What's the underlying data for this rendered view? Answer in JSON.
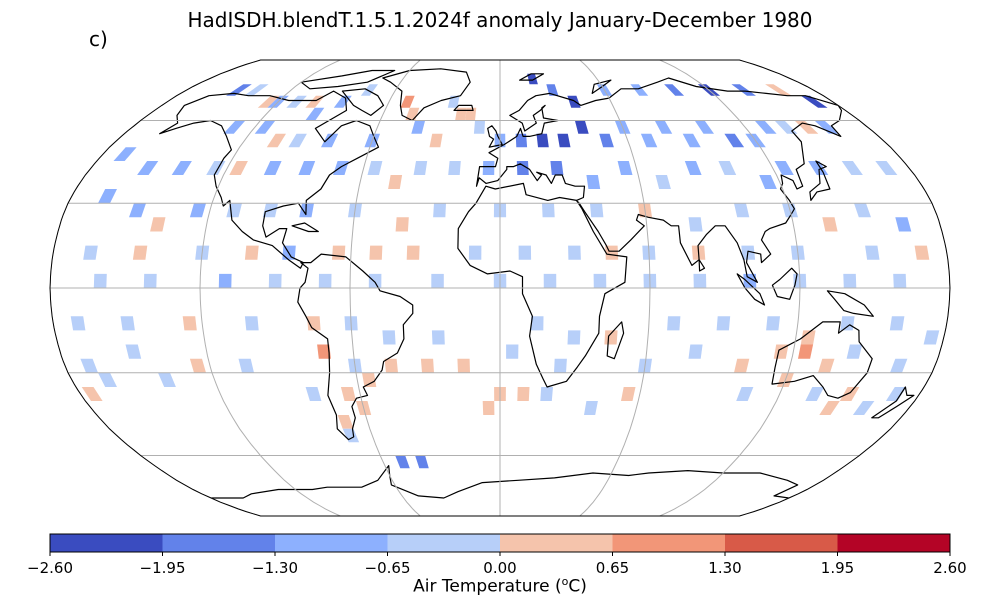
{
  "title": "HadISDH.blendT.1.5.1.2024f anomaly January-December 1980",
  "panel_label": "c)",
  "colorbar": {
    "label": "Air Temperature (",
    "label_sup": "o",
    "label_unit": "C)",
    "ticks": [
      "−2.60",
      "−1.95",
      "−1.30",
      "−0.65",
      "0.00",
      "0.65",
      "1.30",
      "1.95",
      "2.60"
    ],
    "bins": [
      {
        "min": -2.6,
        "max": -1.95,
        "color": "#3a4cc0"
      },
      {
        "min": -1.95,
        "max": -1.3,
        "color": "#6282ea"
      },
      {
        "min": -1.3,
        "max": -0.65,
        "color": "#8db0fe"
      },
      {
        "min": -0.65,
        "max": 0.0,
        "color": "#b7cff9"
      },
      {
        "min": 0.0,
        "max": 0.65,
        "color": "#f5c4ac"
      },
      {
        "min": 0.65,
        "max": 1.3,
        "color": "#f29678"
      },
      {
        "min": 1.3,
        "max": 1.95,
        "color": "#d85a48"
      },
      {
        "min": 1.95,
        "max": 2.6,
        "color": "#b40426"
      }
    ]
  },
  "map": {
    "projection": "Robinson",
    "grid_lines": true,
    "coastlines": true,
    "anomaly_cells": [
      {
        "lon": -150,
        "lat": 72.5,
        "value": -1.6
      },
      {
        "lon": -140,
        "lat": 72.5,
        "value": -0.3
      },
      {
        "lon": -125,
        "lat": 67.5,
        "value": 0.3
      },
      {
        "lon": -120,
        "lat": 67.5,
        "value": -0.8
      },
      {
        "lon": -110,
        "lat": 67.5,
        "value": -0.4
      },
      {
        "lon": -100,
        "lat": 67.5,
        "value": 0.3
      },
      {
        "lon": -95,
        "lat": 62.5,
        "value": -0.9
      },
      {
        "lon": -85,
        "lat": 67.5,
        "value": -1.0
      },
      {
        "lon": -75,
        "lat": 72.5,
        "value": -0.5
      },
      {
        "lon": -50,
        "lat": 67.5,
        "value": 0.8
      },
      {
        "lon": -45,
        "lat": 62.5,
        "value": 0.6
      },
      {
        "lon": -25,
        "lat": 67.5,
        "value": -0.4
      },
      {
        "lon": -20,
        "lat": 62.5,
        "value": 0.3
      },
      {
        "lon": -15,
        "lat": 62.5,
        "value": 0.4
      },
      {
        "lon": 20,
        "lat": 77.5,
        "value": -2.2
      },
      {
        "lon": 30,
        "lat": 72.5,
        "value": -1.8
      },
      {
        "lon": 40,
        "lat": 67.5,
        "value": -2.0
      },
      {
        "lon": 60,
        "lat": 72.5,
        "value": -1.0
      },
      {
        "lon": 80,
        "lat": 72.5,
        "value": -1.2
      },
      {
        "lon": 100,
        "lat": 72.5,
        "value": -1.5
      },
      {
        "lon": 120,
        "lat": 72.5,
        "value": -2.2
      },
      {
        "lon": 140,
        "lat": 72.5,
        "value": -1.4
      },
      {
        "lon": 160,
        "lat": 72.5,
        "value": 0.3
      },
      {
        "lon": 170,
        "lat": 67.5,
        "value": -2.3
      },
      {
        "lon": -130,
        "lat": 57.5,
        "value": -0.9
      },
      {
        "lon": -115,
        "lat": 57.5,
        "value": -1.1
      },
      {
        "lon": -105,
        "lat": 52.5,
        "value": 0.4
      },
      {
        "lon": -95,
        "lat": 52.5,
        "value": -0.5
      },
      {
        "lon": -80,
        "lat": 52.5,
        "value": -1.0
      },
      {
        "lon": -60,
        "lat": 52.5,
        "value": -1.0
      },
      {
        "lon": -40,
        "lat": 57.5,
        "value": -0.7
      },
      {
        "lon": -30,
        "lat": 52.5,
        "value": 0.2
      },
      {
        "lon": -10,
        "lat": 57.5,
        "value": -0.4
      },
      {
        "lon": 0,
        "lat": 52.5,
        "value": -1.0
      },
      {
        "lon": 10,
        "lat": 52.5,
        "value": -1.9
      },
      {
        "lon": 20,
        "lat": 52.5,
        "value": -2.2
      },
      {
        "lon": 30,
        "lat": 52.5,
        "value": -2.4
      },
      {
        "lon": 40,
        "lat": 57.5,
        "value": -2.0
      },
      {
        "lon": 50,
        "lat": 52.5,
        "value": -1.4
      },
      {
        "lon": 60,
        "lat": 57.5,
        "value": -1.3
      },
      {
        "lon": 70,
        "lat": 52.5,
        "value": -1.0
      },
      {
        "lon": 80,
        "lat": 57.5,
        "value": -0.7
      },
      {
        "lon": 90,
        "lat": 52.5,
        "value": -1.1
      },
      {
        "lon": 100,
        "lat": 57.5,
        "value": -0.9
      },
      {
        "lon": 110,
        "lat": 52.5,
        "value": -1.5
      },
      {
        "lon": 120,
        "lat": 52.5,
        "value": -1.2
      },
      {
        "lon": 130,
        "lat": 57.5,
        "value": -1.0
      },
      {
        "lon": 140,
        "lat": 57.5,
        "value": -0.4
      },
      {
        "lon": 150,
        "lat": 57.5,
        "value": 0.3
      },
      {
        "lon": 160,
        "lat": 57.5,
        "value": -1.0
      },
      {
        "lon": -170,
        "lat": 47.5,
        "value": -0.7
      },
      {
        "lon": -155,
        "lat": 42.5,
        "value": -1.0
      },
      {
        "lon": -140,
        "lat": 42.5,
        "value": -0.9
      },
      {
        "lon": -125,
        "lat": 42.5,
        "value": -0.6
      },
      {
        "lon": -115,
        "lat": 42.5,
        "value": 0.3
      },
      {
        "lon": -100,
        "lat": 42.5,
        "value": -1.1
      },
      {
        "lon": -85,
        "lat": 42.5,
        "value": -1.2
      },
      {
        "lon": -70,
        "lat": 42.5,
        "value": -0.8
      },
      {
        "lon": -55,
        "lat": 42.5,
        "value": -0.5
      },
      {
        "lon": -45,
        "lat": 37.5,
        "value": 0.3
      },
      {
        "lon": -35,
        "lat": 42.5,
        "value": -0.4
      },
      {
        "lon": -20,
        "lat": 42.5,
        "value": -0.6
      },
      {
        "lon": -5,
        "lat": 42.5,
        "value": -1.3
      },
      {
        "lon": 10,
        "lat": 42.5,
        "value": -1.7
      },
      {
        "lon": 25,
        "lat": 42.5,
        "value": -1.9
      },
      {
        "lon": 40,
        "lat": 37.5,
        "value": -1.1
      },
      {
        "lon": 55,
        "lat": 42.5,
        "value": -0.9
      },
      {
        "lon": 70,
        "lat": 37.5,
        "value": -0.5
      },
      {
        "lon": 85,
        "lat": 42.5,
        "value": -0.8
      },
      {
        "lon": 100,
        "lat": 42.5,
        "value": -0.6
      },
      {
        "lon": 115,
        "lat": 37.5,
        "value": -0.9
      },
      {
        "lon": 125,
        "lat": 42.5,
        "value": -1.2
      },
      {
        "lon": 140,
        "lat": 42.5,
        "value": -0.7
      },
      {
        "lon": 155,
        "lat": 42.5,
        "value": -0.6
      },
      {
        "lon": 170,
        "lat": 42.5,
        "value": -0.6
      },
      {
        "lon": -165,
        "lat": 32.5,
        "value": -0.7
      },
      {
        "lon": -150,
        "lat": 27.5,
        "value": -1.0
      },
      {
        "lon": -140,
        "lat": 22.5,
        "value": 0.4
      },
      {
        "lon": -125,
        "lat": 27.5,
        "value": -0.9
      },
      {
        "lon": -110,
        "lat": 27.5,
        "value": -0.6
      },
      {
        "lon": -95,
        "lat": 27.5,
        "value": -0.6
      },
      {
        "lon": -80,
        "lat": 27.5,
        "value": -1.0
      },
      {
        "lon": -60,
        "lat": 27.5,
        "value": -0.4
      },
      {
        "lon": -40,
        "lat": 22.5,
        "value": 0.3
      },
      {
        "lon": -25,
        "lat": 27.5,
        "value": -0.5
      },
      {
        "lon": 0,
        "lat": 27.5,
        "value": -0.5
      },
      {
        "lon": 20,
        "lat": 27.5,
        "value": -0.6
      },
      {
        "lon": 40,
        "lat": 27.5,
        "value": -0.5
      },
      {
        "lon": 60,
        "lat": 27.5,
        "value": 0.3
      },
      {
        "lon": 80,
        "lat": 22.5,
        "value": -0.5
      },
      {
        "lon": 100,
        "lat": 27.5,
        "value": -0.6
      },
      {
        "lon": 120,
        "lat": 27.5,
        "value": -0.5
      },
      {
        "lon": 135,
        "lat": 22.5,
        "value": 0.3
      },
      {
        "lon": 150,
        "lat": 27.5,
        "value": -0.6
      },
      {
        "lon": 165,
        "lat": 22.5,
        "value": -1.2
      },
      {
        "lon": -165,
        "lat": 12.5,
        "value": -0.4
      },
      {
        "lon": -145,
        "lat": 12.5,
        "value": 0.3
      },
      {
        "lon": -120,
        "lat": 12.5,
        "value": -0.4
      },
      {
        "lon": -100,
        "lat": 12.5,
        "value": 0.3
      },
      {
        "lon": -85,
        "lat": 12.5,
        "value": -0.8
      },
      {
        "lon": -65,
        "lat": 12.5,
        "value": 0.4
      },
      {
        "lon": -50,
        "lat": 12.5,
        "value": 0.4
      },
      {
        "lon": -35,
        "lat": 12.5,
        "value": 0.3
      },
      {
        "lon": -10,
        "lat": 12.5,
        "value": -0.4
      },
      {
        "lon": 10,
        "lat": 12.5,
        "value": -0.4
      },
      {
        "lon": 30,
        "lat": 12.5,
        "value": -0.5
      },
      {
        "lon": 45,
        "lat": 12.5,
        "value": 0.3
      },
      {
        "lon": 60,
        "lat": 12.5,
        "value": -0.6
      },
      {
        "lon": 80,
        "lat": 12.5,
        "value": 0.4
      },
      {
        "lon": 100,
        "lat": 12.5,
        "value": -0.5
      },
      {
        "lon": 120,
        "lat": 12.5,
        "value": -0.5
      },
      {
        "lon": 150,
        "lat": 12.5,
        "value": -0.6
      },
      {
        "lon": 170,
        "lat": 12.5,
        "value": 0.3
      },
      {
        "lon": -160,
        "lat": 2.5,
        "value": -0.4
      },
      {
        "lon": -140,
        "lat": 2.5,
        "value": -0.4
      },
      {
        "lon": -110,
        "lat": 2.5,
        "value": -0.7
      },
      {
        "lon": -90,
        "lat": 2.5,
        "value": -0.4
      },
      {
        "lon": -70,
        "lat": 2.5,
        "value": -0.6
      },
      {
        "lon": -50,
        "lat": 2.5,
        "value": -0.5
      },
      {
        "lon": -25,
        "lat": 2.5,
        "value": -0.4
      },
      {
        "lon": 0,
        "lat": 2.5,
        "value": -0.4
      },
      {
        "lon": 20,
        "lat": 2.5,
        "value": -0.5
      },
      {
        "lon": 40,
        "lat": 2.5,
        "value": -0.5
      },
      {
        "lon": 60,
        "lat": 2.5,
        "value": -0.4
      },
      {
        "lon": 80,
        "lat": 2.5,
        "value": -0.4
      },
      {
        "lon": 100,
        "lat": 2.5,
        "value": -0.7
      },
      {
        "lon": 120,
        "lat": 2.5,
        "value": -0.6
      },
      {
        "lon": 140,
        "lat": 2.5,
        "value": -0.4
      },
      {
        "lon": 160,
        "lat": 2.5,
        "value": -0.5
      },
      {
        "lon": -170,
        "lat": -12.5,
        "value": -0.5
      },
      {
        "lon": -150,
        "lat": -12.5,
        "value": -0.4
      },
      {
        "lon": -125,
        "lat": -12.5,
        "value": 0.3
      },
      {
        "lon": -100,
        "lat": -12.5,
        "value": -0.4
      },
      {
        "lon": -75,
        "lat": -12.5,
        "value": 0.4
      },
      {
        "lon": -60,
        "lat": -12.5,
        "value": -0.5
      },
      {
        "lon": -45,
        "lat": -17.5,
        "value": -0.4
      },
      {
        "lon": -25,
        "lat": -17.5,
        "value": -0.4
      },
      {
        "lon": 15,
        "lat": -12.5,
        "value": -0.4
      },
      {
        "lon": 30,
        "lat": -17.5,
        "value": -0.5
      },
      {
        "lon": 45,
        "lat": -17.5,
        "value": 0.3
      },
      {
        "lon": 70,
        "lat": -12.5,
        "value": -0.4
      },
      {
        "lon": 90,
        "lat": -12.5,
        "value": -0.4
      },
      {
        "lon": 110,
        "lat": -12.5,
        "value": -0.5
      },
      {
        "lon": 125,
        "lat": -17.5,
        "value": 0.4
      },
      {
        "lon": 140,
        "lat": -12.5,
        "value": -0.6
      },
      {
        "lon": 160,
        "lat": -12.5,
        "value": -0.4
      },
      {
        "lon": 175,
        "lat": -17.5,
        "value": -0.5
      },
      {
        "lon": -170,
        "lat": -27.5,
        "value": -0.4
      },
      {
        "lon": -150,
        "lat": -22.5,
        "value": -0.5
      },
      {
        "lon": -125,
        "lat": -27.5,
        "value": 0.3
      },
      {
        "lon": -105,
        "lat": -27.5,
        "value": -0.4
      },
      {
        "lon": -72,
        "lat": -22.5,
        "value": 1.1
      },
      {
        "lon": -60,
        "lat": -27.5,
        "value": -0.5
      },
      {
        "lon": -45,
        "lat": -27.5,
        "value": 0.3
      },
      {
        "lon": -30,
        "lat": -27.5,
        "value": 0.4
      },
      {
        "lon": -15,
        "lat": -27.5,
        "value": 0.3
      },
      {
        "lon": 5,
        "lat": -22.5,
        "value": -0.4
      },
      {
        "lon": 25,
        "lat": -27.5,
        "value": -0.5
      },
      {
        "lon": 60,
        "lat": -27.5,
        "value": -0.4
      },
      {
        "lon": 80,
        "lat": -22.5,
        "value": -0.4
      },
      {
        "lon": 100,
        "lat": -27.5,
        "value": 0.3
      },
      {
        "lon": 115,
        "lat": -22.5,
        "value": 0.4
      },
      {
        "lon": 125,
        "lat": -22.5,
        "value": 0.9
      },
      {
        "lon": 135,
        "lat": -27.5,
        "value": 0.4
      },
      {
        "lon": 145,
        "lat": -22.5,
        "value": -0.5
      },
      {
        "lon": 165,
        "lat": -27.5,
        "value": -0.4
      },
      {
        "lon": -175,
        "lat": -37.5,
        "value": 0.4
      },
      {
        "lon": -165,
        "lat": -32.5,
        "value": -0.4
      },
      {
        "lon": -140,
        "lat": -32.5,
        "value": -0.4
      },
      {
        "lon": -80,
        "lat": -37.5,
        "value": -0.5
      },
      {
        "lon": -65,
        "lat": -37.5,
        "value": 0.3
      },
      {
        "lon": -55,
        "lat": -32.5,
        "value": 0.3
      },
      {
        "lon": 0,
        "lat": -37.5,
        "value": 0.3
      },
      {
        "lon": 10,
        "lat": -37.5,
        "value": 0.3
      },
      {
        "lon": 20,
        "lat": -37.5,
        "value": -0.5
      },
      {
        "lon": 55,
        "lat": -37.5,
        "value": 0.3
      },
      {
        "lon": 105,
        "lat": -37.5,
        "value": -0.6
      },
      {
        "lon": 120,
        "lat": -32.5,
        "value": 0.3
      },
      {
        "lon": 135,
        "lat": -37.5,
        "value": -0.5
      },
      {
        "lon": 150,
        "lat": -37.5,
        "value": 0.4
      },
      {
        "lon": 170,
        "lat": -37.5,
        "value": -0.5
      },
      {
        "lon": -70,
        "lat": -47.5,
        "value": 0.3
      },
      {
        "lon": -60,
        "lat": -42.5,
        "value": 0.4
      },
      {
        "lon": -5,
        "lat": -42.5,
        "value": 0.3
      },
      {
        "lon": 40,
        "lat": -42.5,
        "value": -0.4
      },
      {
        "lon": 145,
        "lat": -42.5,
        "value": 0.3
      },
      {
        "lon": 160,
        "lat": -42.5,
        "value": -0.4
      },
      {
        "lon": -70,
        "lat": -52.5,
        "value": -0.4
      },
      {
        "lon": -50,
        "lat": -62.5,
        "value": -1.5
      },
      {
        "lon": -40,
        "lat": -62.5,
        "value": -1.6
      }
    ]
  }
}
